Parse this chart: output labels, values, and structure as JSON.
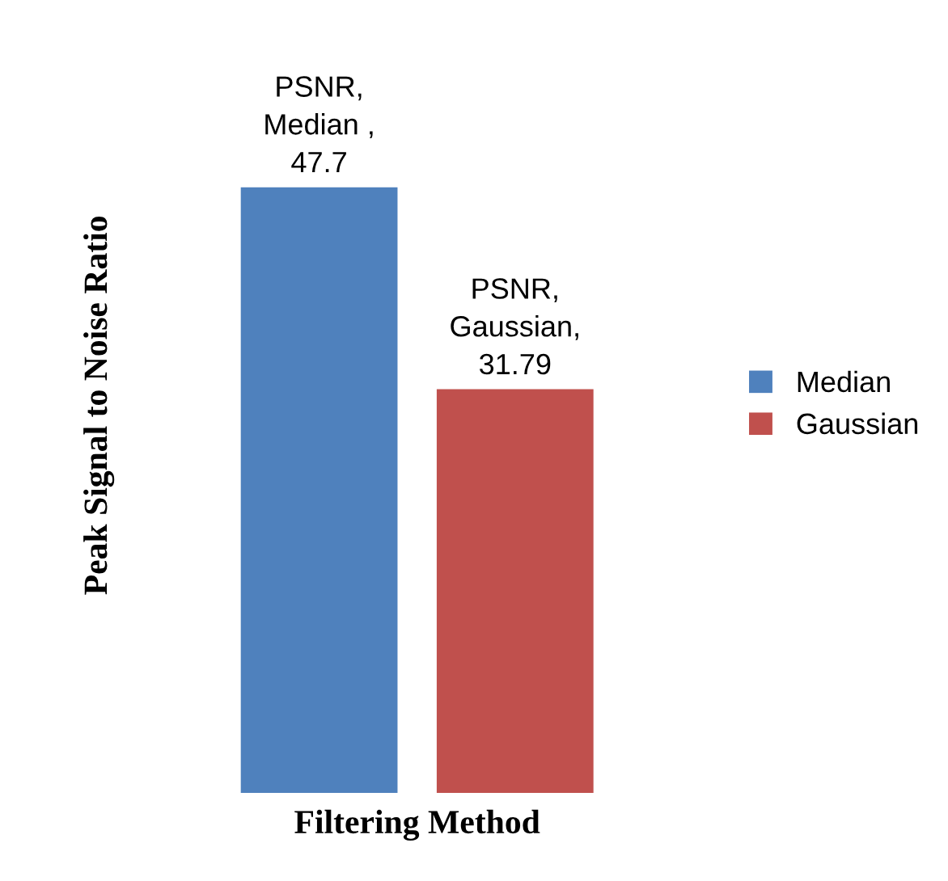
{
  "chart_data": {
    "type": "bar",
    "xlabel": "Filtering Method",
    "ylabel": "Peak Signal to Noise Ratio",
    "categories": [
      null
    ],
    "series": [
      {
        "name": "Median",
        "color": "#4f81bd",
        "values": [
          47.7
        ],
        "value_labels": [
          "PSNR,\nMedian ,\n47.7"
        ]
      },
      {
        "name": "Gaussian",
        "color": "#c0504d",
        "values": [
          31.79
        ],
        "value_labels": [
          "PSNR,\nGaussian,\n31.79"
        ]
      }
    ],
    "legend": "right",
    "grid": false
  }
}
